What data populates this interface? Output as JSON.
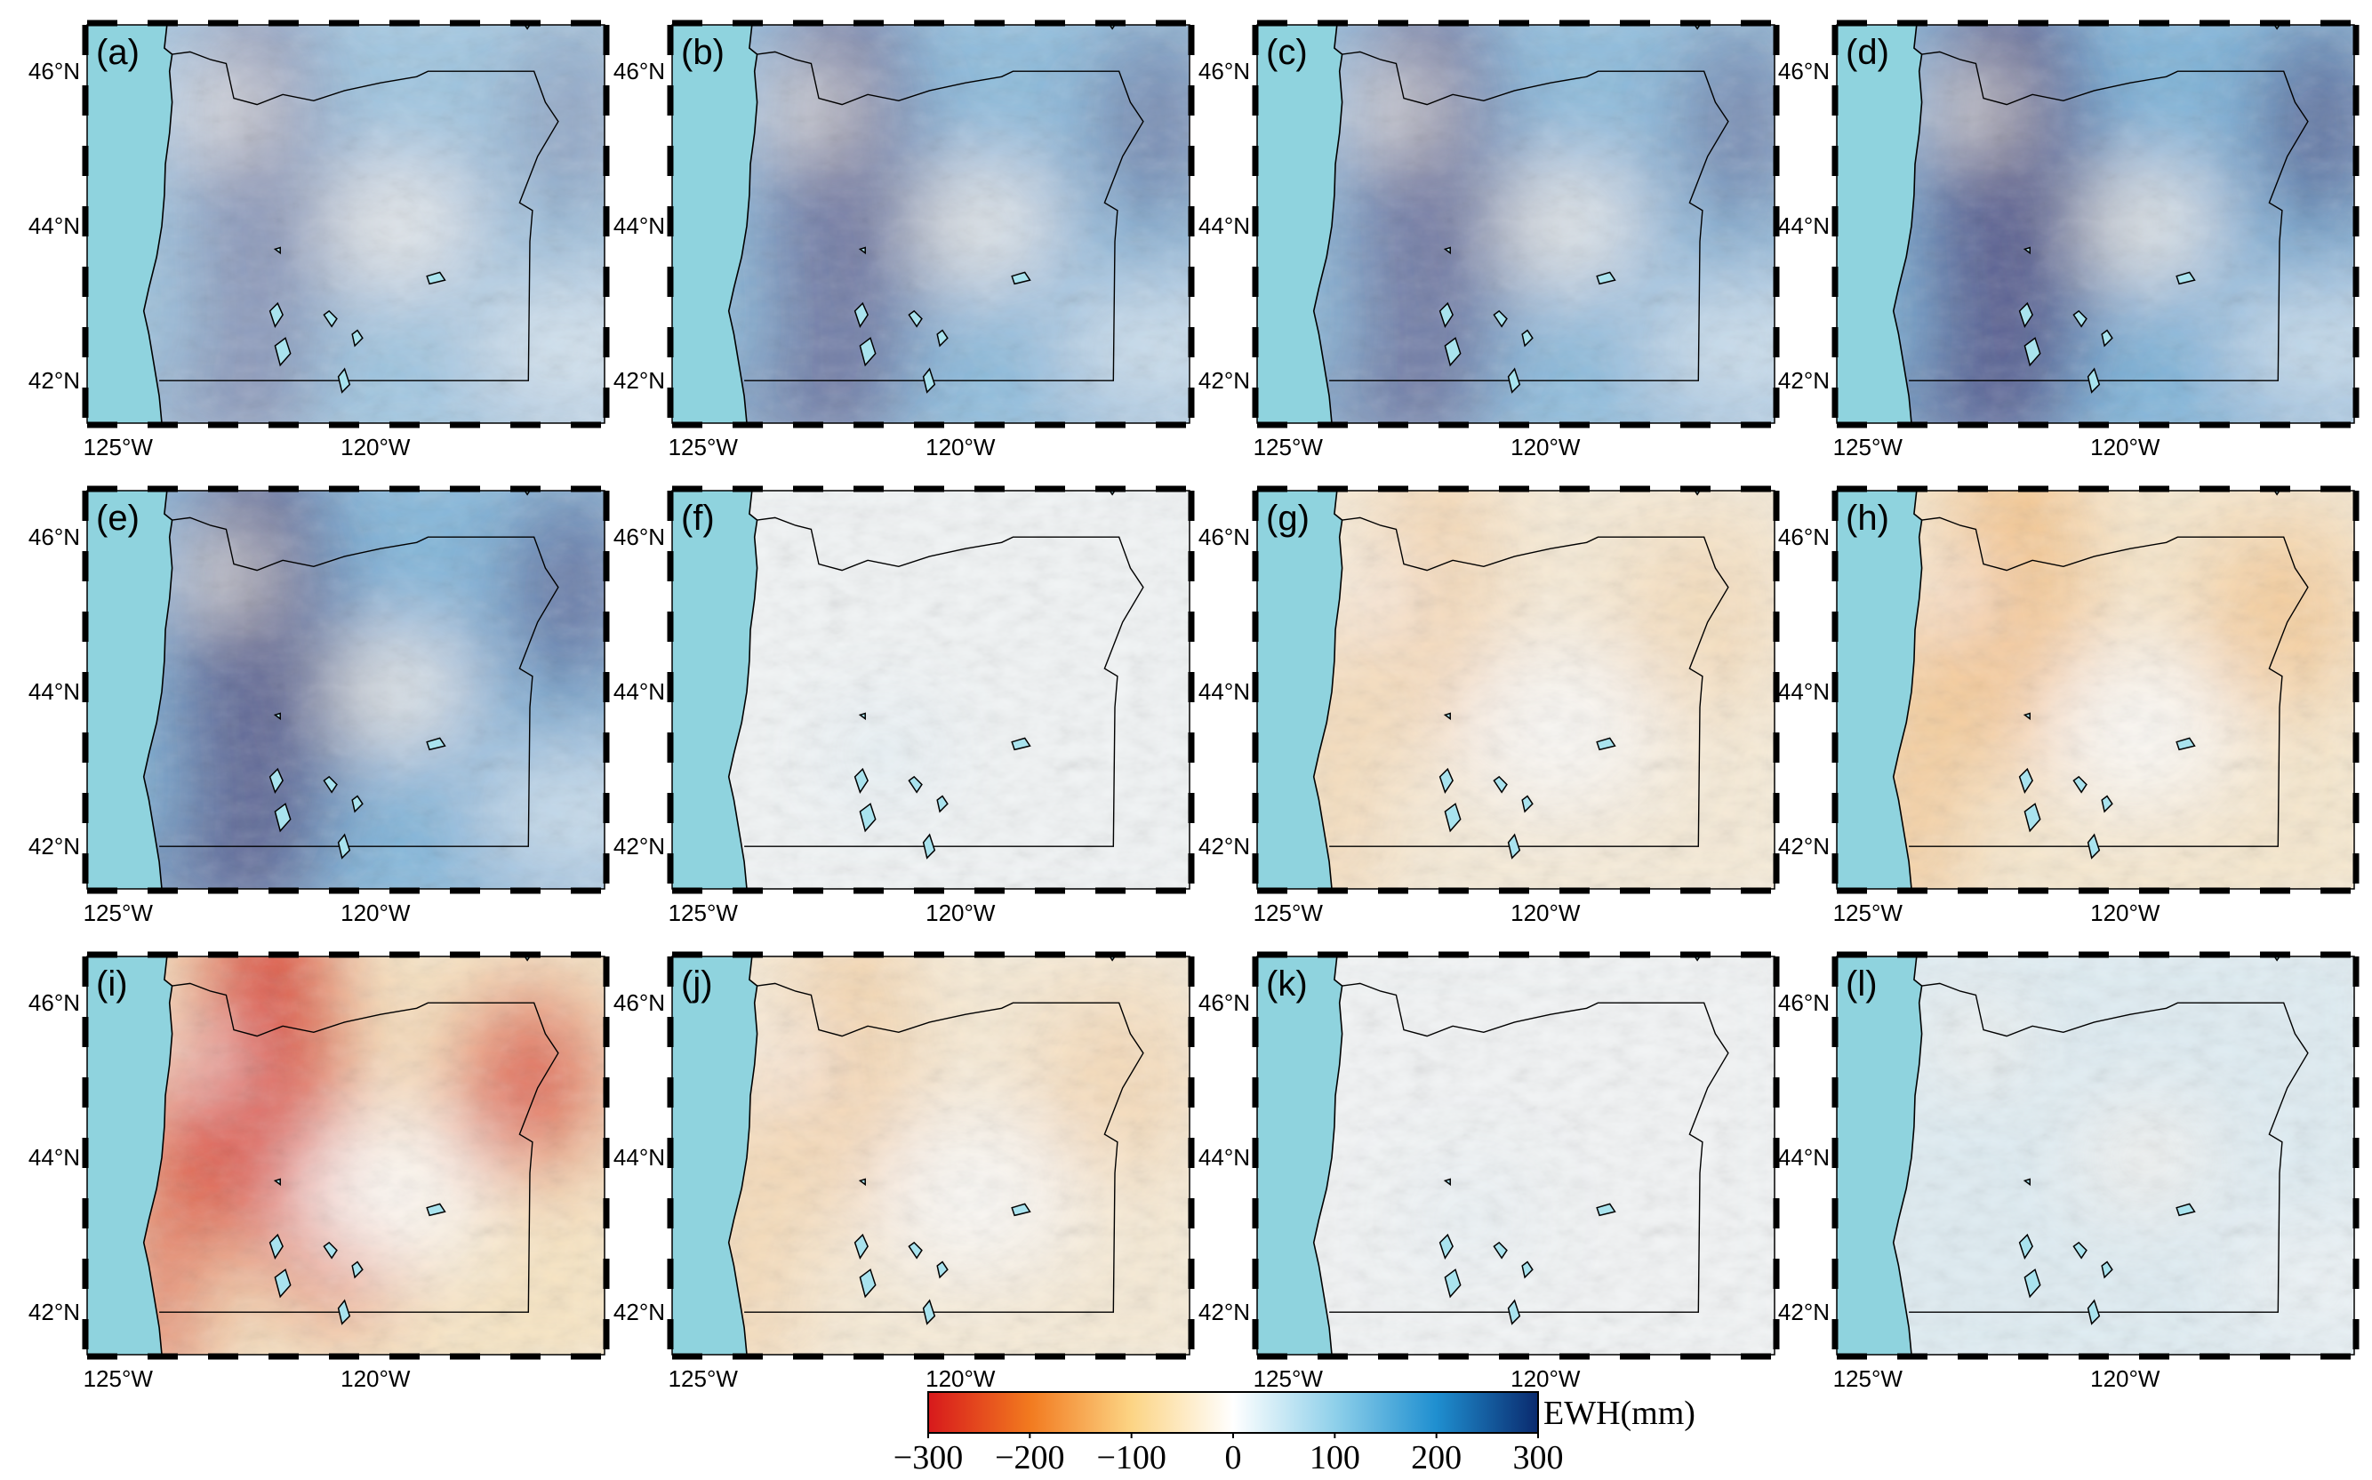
{
  "figure": {
    "panels": [
      {
        "label": "(a)",
        "pattern": "wet",
        "intensity": 0.55
      },
      {
        "label": "(b)",
        "pattern": "wet",
        "intensity": 0.8
      },
      {
        "label": "(c)",
        "pattern": "wet",
        "intensity": 0.8
      },
      {
        "label": "(d)",
        "pattern": "wet",
        "intensity": 1.0
      },
      {
        "label": "(e)",
        "pattern": "wet",
        "intensity": 0.95
      },
      {
        "label": "(f)",
        "pattern": "neutral",
        "intensity": 0.25
      },
      {
        "label": "(g)",
        "pattern": "dry",
        "intensity": 0.35
      },
      {
        "label": "(h)",
        "pattern": "dry",
        "intensity": 0.65
      },
      {
        "label": "(i)",
        "pattern": "dry",
        "intensity": 1.0
      },
      {
        "label": "(j)",
        "pattern": "dry",
        "intensity": 0.4
      },
      {
        "label": "(k)",
        "pattern": "neutral",
        "intensity": 0.1
      },
      {
        "label": "(l)",
        "pattern": "wetlight",
        "intensity": 0.3
      }
    ],
    "lat_ticks": [
      "46°N",
      "44°N",
      "42°N"
    ],
    "lon_ticks": [
      "125°W",
      "120°W"
    ],
    "colorbar": {
      "title": "EWH(mm)",
      "tick_labels": [
        "−300",
        "−200",
        "−100",
        "0",
        "100",
        "200",
        "300"
      ],
      "range": [
        -300,
        300
      ],
      "stops": [
        "#d7191c",
        "#f27a1f",
        "#fcd484",
        "#ffffff",
        "#8fd0ea",
        "#1f8fd0",
        "#0a2a6e"
      ]
    },
    "colors": {
      "ocean": "#8fd3de",
      "land_base": "#f4f4f4",
      "wet": "#3d8fc9",
      "wet_deep": "#4a4f85",
      "dry": "#f3a54a",
      "dry_deep": "#d9402e"
    }
  }
}
